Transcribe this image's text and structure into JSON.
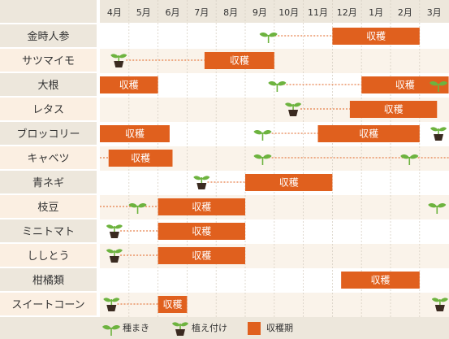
{
  "chart_data": {
    "type": "gantt",
    "months": [
      "4月",
      "5月",
      "6月",
      "7月",
      "8月",
      "9月",
      "10月",
      "11月",
      "12月",
      "1月",
      "2月",
      "3月"
    ],
    "harvest_label": "収穫",
    "crops": [
      {
        "name": "金時人参",
        "events": [
          {
            "type": "seed",
            "m": 5.8
          }
        ],
        "dotted": [
          [
            5.9,
            8.0
          ]
        ],
        "harvest": [
          [
            8.0,
            11.0
          ]
        ]
      },
      {
        "name": "サツマイモ",
        "events": [
          {
            "type": "plant",
            "m": 0.65
          }
        ],
        "dotted": [
          [
            0.9,
            3.6
          ]
        ],
        "harvest": [
          [
            3.6,
            6.0
          ]
        ]
      },
      {
        "name": "大根",
        "events": [
          {
            "type": "seed",
            "m": 6.1
          },
          {
            "type": "seed",
            "m": 11.65
          }
        ],
        "dotted": [
          [
            6.3,
            9.0
          ]
        ],
        "harvest": [
          [
            0.0,
            2.0
          ],
          [
            9.0,
            12.0
          ]
        ]
      },
      {
        "name": "レタス",
        "events": [
          {
            "type": "plant",
            "m": 6.65
          }
        ],
        "dotted": [
          [
            6.9,
            8.6
          ]
        ],
        "harvest": [
          [
            8.6,
            11.6
          ]
        ]
      },
      {
        "name": "ブロッコリー",
        "events": [
          {
            "type": "seed",
            "m": 5.6
          },
          {
            "type": "plant",
            "m": 11.65
          }
        ],
        "dotted": [
          [
            5.8,
            7.5
          ]
        ],
        "harvest": [
          [
            0.0,
            2.4
          ],
          [
            7.5,
            11.0
          ]
        ]
      },
      {
        "name": "キャベツ",
        "events": [
          {
            "type": "seed",
            "m": 5.6
          },
          {
            "type": "seed",
            "m": 10.65
          }
        ],
        "dotted": [
          [
            -0.1,
            0.3
          ],
          [
            5.8,
            12.0
          ]
        ],
        "harvest": [
          [
            0.3,
            2.5
          ]
        ]
      },
      {
        "name": "青ネギ",
        "events": [
          {
            "type": "plant",
            "m": 3.5
          }
        ],
        "dotted": [
          [
            3.7,
            5.0
          ]
        ],
        "harvest": [
          [
            5.0,
            8.0
          ]
        ]
      },
      {
        "name": "枝豆",
        "events": [
          {
            "type": "seed",
            "m": 1.3
          },
          {
            "type": "seed",
            "m": 11.6
          }
        ],
        "dotted": [
          [
            0.0,
            2.0
          ]
        ],
        "harvest": [
          [
            2.0,
            5.0
          ]
        ]
      },
      {
        "name": "ミニトマト",
        "events": [
          {
            "type": "plant",
            "m": 0.5
          }
        ],
        "dotted": [
          [
            0.7,
            2.0
          ]
        ],
        "harvest": [
          [
            2.0,
            5.0
          ]
        ]
      },
      {
        "name": "ししとう",
        "events": [
          {
            "type": "plant",
            "m": 0.5
          }
        ],
        "dotted": [
          [
            0.7,
            2.0
          ]
        ],
        "harvest": [
          [
            2.0,
            5.0
          ]
        ]
      },
      {
        "name": "柑橘類",
        "events": [],
        "dotted": [],
        "harvest": [
          [
            8.3,
            11.0
          ]
        ]
      },
      {
        "name": "スイートコーン",
        "events": [
          {
            "type": "plant",
            "m": 0.4
          },
          {
            "type": "plant",
            "m": 11.7
          }
        ],
        "dotted": [
          [
            0.6,
            2.0
          ]
        ],
        "harvest": [
          [
            2.0,
            3.0
          ]
        ]
      }
    ]
  },
  "legend": {
    "seed_label": "種まき",
    "plant_label": "植え付け",
    "harvest_label": "収穫期"
  },
  "colors": {
    "harvest": "#e0601e",
    "seedling": "#6db33f",
    "pot": "#3a2a20",
    "header_bg": "#ede7dc",
    "label_bg": "#ede7dc",
    "row_shade": "#faf3ea",
    "dotted": "#e0601e"
  }
}
